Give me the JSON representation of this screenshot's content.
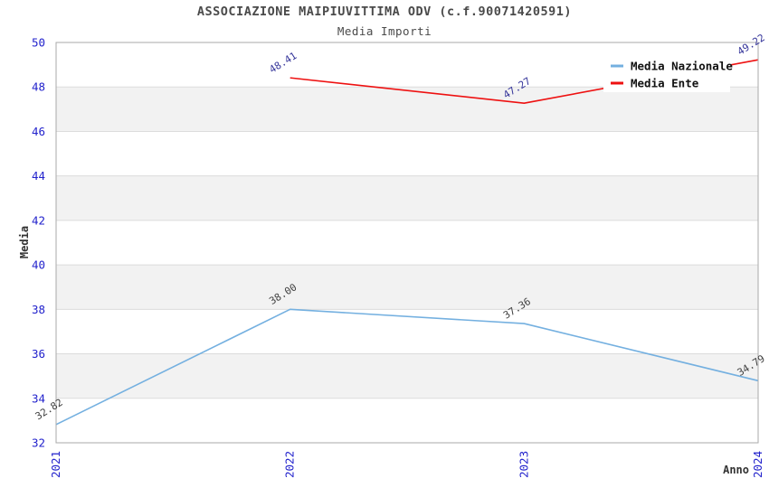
{
  "header": {
    "title": "ASSOCIAZIONE MAIPIUVITTIMA ODV (c.f.90071420591)",
    "subtitle": "Media Importi"
  },
  "chart_data": {
    "type": "line",
    "categories": [
      "2021",
      "2022",
      "2023",
      "2024"
    ],
    "series": [
      {
        "name": "Media Nazionale",
        "color": "#74b0e0",
        "label_color": "#3f3f3f",
        "values": [
          32.82,
          38.0,
          37.36,
          34.79
        ]
      },
      {
        "name": "Media Ente",
        "color": "#ee1111",
        "label_color": "#333399",
        "values": [
          null,
          48.41,
          47.27,
          49.22
        ]
      }
    ],
    "xlabel": "Anno",
    "ylabel": "Media",
    "ylim": [
      32,
      50
    ],
    "ytick_step": 2,
    "yticks": [
      32,
      34,
      36,
      38,
      40,
      42,
      44,
      46,
      48,
      50
    ],
    "value_label_decimals": 2,
    "grid": true,
    "band_color": "#f2f2f2",
    "grid_color": "#dcdcdc",
    "border_color": "#aaaaaa",
    "tick_label_color": "#2222cc",
    "axis_label_color": "#333333",
    "legend": {
      "position": "top-right",
      "text_color": "#111111",
      "entries": [
        "Media Nazionale",
        "Media Ente"
      ]
    }
  }
}
